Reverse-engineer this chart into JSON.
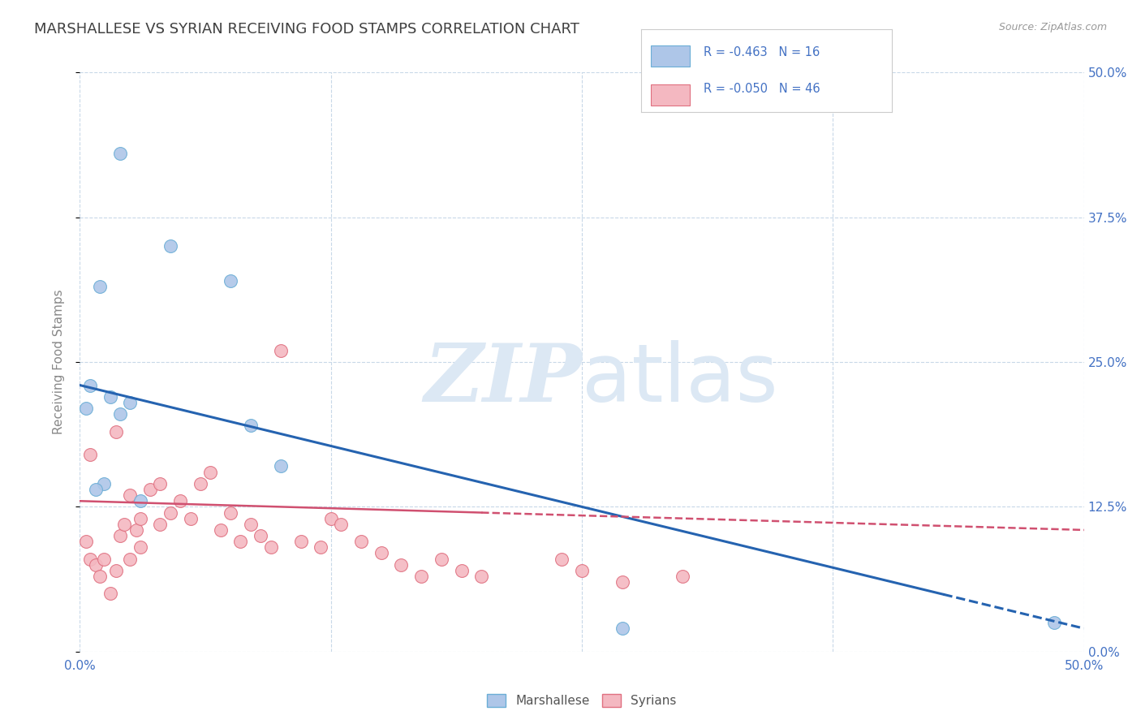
{
  "title": "MARSHALLESE VS SYRIAN RECEIVING FOOD STAMPS CORRELATION CHART",
  "source": "Source: ZipAtlas.com",
  "ylabel": "Receiving Food Stamps",
  "ytick_vals": [
    0.0,
    12.5,
    25.0,
    37.5,
    50.0
  ],
  "xlim": [
    0.0,
    50.0
  ],
  "ylim": [
    0.0,
    50.0
  ],
  "legend_r_marsh": "-0.463",
  "legend_n_marsh": "16",
  "legend_r_syr": "-0.050",
  "legend_n_syr": "46",
  "marshallese_x": [
    2.0,
    4.5,
    7.5,
    1.0,
    0.5,
    1.5,
    2.5,
    8.5,
    10.0,
    1.2,
    0.8,
    3.0,
    27.0,
    48.5,
    0.3,
    2.0
  ],
  "marshallese_y": [
    43.0,
    35.0,
    32.0,
    31.5,
    23.0,
    22.0,
    21.5,
    19.5,
    16.0,
    14.5,
    14.0,
    13.0,
    2.0,
    2.5,
    21.0,
    20.5
  ],
  "syrian_x": [
    0.3,
    0.5,
    0.8,
    1.0,
    1.2,
    1.5,
    1.8,
    2.0,
    2.2,
    2.5,
    2.5,
    2.8,
    3.0,
    3.0,
    3.5,
    4.0,
    4.0,
    4.5,
    5.0,
    5.5,
    6.0,
    6.5,
    7.0,
    7.5,
    8.0,
    8.5,
    9.0,
    9.5,
    10.0,
    11.0,
    12.0,
    12.5,
    13.0,
    14.0,
    15.0,
    16.0,
    17.0,
    18.0,
    19.0,
    20.0,
    24.0,
    25.0,
    27.0,
    30.0,
    0.5,
    1.8
  ],
  "syrian_y": [
    9.5,
    8.0,
    7.5,
    6.5,
    8.0,
    5.0,
    7.0,
    10.0,
    11.0,
    13.5,
    8.0,
    10.5,
    11.5,
    9.0,
    14.0,
    14.5,
    11.0,
    12.0,
    13.0,
    11.5,
    14.5,
    15.5,
    10.5,
    12.0,
    9.5,
    11.0,
    10.0,
    9.0,
    26.0,
    9.5,
    9.0,
    11.5,
    11.0,
    9.5,
    8.5,
    7.5,
    6.5,
    8.0,
    7.0,
    6.5,
    8.0,
    7.0,
    6.0,
    6.5,
    17.0,
    19.0
  ],
  "marsh_color": "#aec6e8",
  "marsh_edge": "#6baed6",
  "syr_color": "#f4b8c1",
  "syr_edge": "#e07080",
  "marsh_line_color": "#2563b0",
  "syr_line_color": "#d05070",
  "background_color": "#ffffff",
  "grid_color": "#c8d8e8",
  "watermark_color": "#dce8f4",
  "legend_text_color": "#4472c4",
  "tick_label_color": "#4472c4",
  "ylabel_color": "#888888",
  "title_color": "#404040"
}
